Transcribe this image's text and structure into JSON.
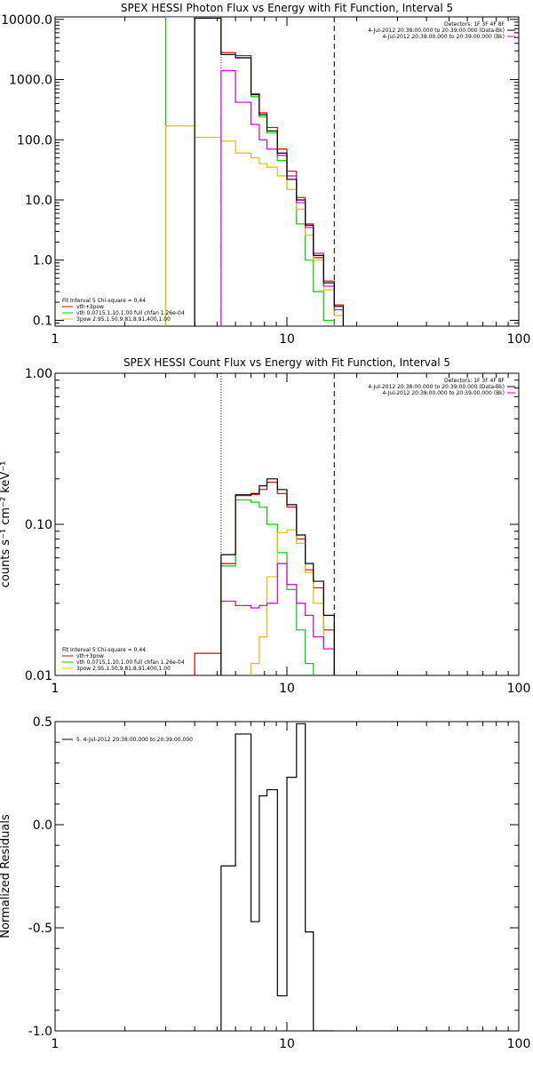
{
  "chart_data": [
    {
      "type": "line",
      "title": "SPEX HESSI Photon Flux vs Energy with Fit Function, Interval 5",
      "xscale": "log",
      "yscale": "log",
      "xlim": [
        1,
        100
      ],
      "ylim": [
        0.08,
        11000
      ],
      "x_ticks": [
        1,
        10,
        100
      ],
      "x_tick_labels": [
        "1",
        "10",
        "100"
      ],
      "y_ticks": [
        0.1,
        1,
        10,
        100,
        1000,
        10000
      ],
      "y_tick_labels": [
        "0.1",
        "1.0",
        "10.0",
        "100.0",
        "1000.0",
        "10000.0"
      ],
      "ylabel": "",
      "bin_edges": [
        3,
        4,
        5.2,
        6,
        7,
        7.6,
        8.2,
        9.1,
        10,
        11,
        12,
        13,
        14.4,
        16,
        17.5,
        19.5
      ],
      "series": [
        {
          "key": "vth_3pow",
          "color": "#e00000",
          "values": [
            null,
            11000,
            2800,
            2500,
            580,
            280,
            160,
            70,
            30,
            11,
            4,
            1.1,
            0.45,
            0.18,
            null
          ]
        },
        {
          "key": "vth",
          "color": "#00cc00",
          "values": [
            11000,
            11000,
            2600,
            2300,
            520,
            240,
            130,
            45,
            15,
            4,
            1,
            0.3,
            0.1,
            null,
            null
          ]
        },
        {
          "key": "pow",
          "color": "#e0c000",
          "values": [
            170,
            110,
            95,
            60,
            50,
            40,
            35,
            25,
            15,
            7,
            2.6,
            1,
            0.32,
            0.12,
            null
          ]
        },
        {
          "key": "data",
          "color": "#d000d0",
          "values": [
            null,
            null,
            1400,
            420,
            180,
            100,
            70,
            55,
            25,
            9,
            3.5,
            1.3,
            0.37,
            0.15,
            null
          ]
        },
        {
          "key": "data_bk",
          "color": "#000000",
          "values": [
            null,
            10500,
            2600,
            2300,
            560,
            260,
            140,
            60,
            22,
            10,
            3.8,
            1.2,
            0.42,
            0.17,
            null
          ]
        }
      ],
      "dotted_vline": 5.2,
      "dashed_vline": 16,
      "legend_right": {
        "position": "top-right",
        "lines": [
          {
            "text": "Detectors: 1F 3F 4F 8F",
            "color": ""
          },
          {
            "text": "4-Jul-2012 20:38:00.000 to 20:39:00.000 (Data-Bk)",
            "color": "#000000"
          },
          {
            "text": "4-Jul-2012 20:38:00.000 to 20:39:00.000 (Bk)",
            "color": "#d000d0"
          }
        ]
      },
      "legend_left": {
        "position": "bottom-left",
        "lines": [
          {
            "text": "Fit Interval 5   Chi-square = 0.44",
            "color": ""
          },
          {
            "text": "vth+3pow",
            "color": "#e00000"
          },
          {
            "text": "vth 0.0715,1.10,1.00  full chfan 1.26e-04",
            "color": "#00cc00"
          },
          {
            "text": "3pow 2.95,1.50,9.81,8.91,400,1.00",
            "color": "#e0c000"
          }
        ]
      }
    },
    {
      "type": "line",
      "title": "SPEX HESSI Count Flux vs Energy with Fit Function, Interval 5",
      "xscale": "log",
      "yscale": "log",
      "xlim": [
        1,
        100
      ],
      "ylim": [
        0.01,
        1
      ],
      "x_ticks": [
        1,
        10,
        100
      ],
      "x_tick_labels": [
        "1",
        "10",
        "100"
      ],
      "y_ticks": [
        0.01,
        0.1,
        1
      ],
      "y_tick_labels": [
        "0.01",
        "0.10",
        "1.00"
      ],
      "ylabel": "counts s⁻¹ cm⁻² keV⁻¹",
      "bin_edges": [
        4,
        5.2,
        6,
        7,
        7.6,
        8.2,
        9.1,
        10,
        11,
        12,
        13,
        14.4,
        16
      ],
      "series": [
        {
          "key": "vth_3pow",
          "color": "#e00000",
          "values": [
            0.014,
            0.055,
            0.155,
            0.158,
            0.17,
            0.19,
            0.16,
            0.13,
            0.08,
            0.05,
            0.038,
            0.02
          ]
        },
        {
          "key": "vth",
          "color": "#00cc00",
          "values": [
            null,
            0.053,
            0.145,
            0.14,
            0.13,
            0.1,
            0.065,
            0.037,
            0.02,
            0.012,
            null,
            null
          ]
        },
        {
          "key": "pow",
          "color": "#e0c000",
          "values": [
            null,
            null,
            null,
            0.012,
            0.018,
            0.045,
            0.088,
            0.092,
            0.075,
            0.048,
            0.03,
            0.015
          ]
        },
        {
          "key": "bk",
          "color": "#d000d0",
          "values": [
            null,
            0.031,
            0.029,
            0.028,
            0.029,
            0.03,
            0.055,
            0.04,
            0.03,
            0.025,
            0.018,
            0.015
          ]
        },
        {
          "key": "data_bk",
          "color": "#000000",
          "values": [
            null,
            0.063,
            0.157,
            0.16,
            0.18,
            0.2,
            0.17,
            0.135,
            0.085,
            0.055,
            0.042,
            0.025
          ]
        }
      ],
      "dotted_vline": 5.2,
      "dashed_vline": 16,
      "legend_right": {
        "position": "top-right",
        "lines": [
          {
            "text": "Detectors: 1F 3F 4F 8F",
            "color": ""
          },
          {
            "text": "4-Jul-2012 20:38:00.000 to 20:39:00.000 (Data-Bk)",
            "color": "#000000"
          },
          {
            "text": "4-Jul-2012 20:38:00.000 to 20:39:00.000 (Bk)",
            "color": "#d000d0"
          }
        ]
      },
      "legend_left": {
        "position": "bottom-left",
        "lines": [
          {
            "text": "Fit Interval 5   Chi-square = 0.44",
            "color": ""
          },
          {
            "text": "vth+3pow",
            "color": "#e00000"
          },
          {
            "text": "vth 0.0715,1.10,1.00  full chfan 1.26e-04",
            "color": "#00cc00"
          },
          {
            "text": "3pow 2.95,1.50,9.81,8.91,400,1.00",
            "color": "#e0c000"
          }
        ]
      }
    },
    {
      "type": "line",
      "title": "",
      "xscale": "log",
      "yscale": "linear",
      "xlim": [
        1,
        100
      ],
      "ylim": [
        -1,
        0.5
      ],
      "x_ticks": [
        1,
        10,
        100
      ],
      "x_tick_labels": [
        "1",
        "10",
        "100"
      ],
      "y_ticks": [
        -1,
        -0.5,
        0,
        0.5
      ],
      "y_tick_labels": [
        "-1.0",
        "-0.5",
        "0.0",
        "0.5"
      ],
      "ylabel": "Normalized Residuals",
      "bin_edges": [
        5.2,
        6,
        7,
        7.6,
        8.2,
        9.1,
        10,
        11,
        12,
        13,
        14.4,
        16
      ],
      "series": [
        {
          "key": "resid",
          "color": "#000000",
          "values": [
            -0.2,
            0.44,
            -0.47,
            0.14,
            0.17,
            -0.83,
            0.23,
            0.49,
            -0.52,
            -1.05,
            -1.05
          ]
        }
      ],
      "legend_left": {
        "position": "top-left",
        "lines": [
          {
            "text": "5.  4-Jul-2012 20:38:00.000 to 20:39:00.000",
            "color": "#000000"
          }
        ]
      }
    }
  ]
}
